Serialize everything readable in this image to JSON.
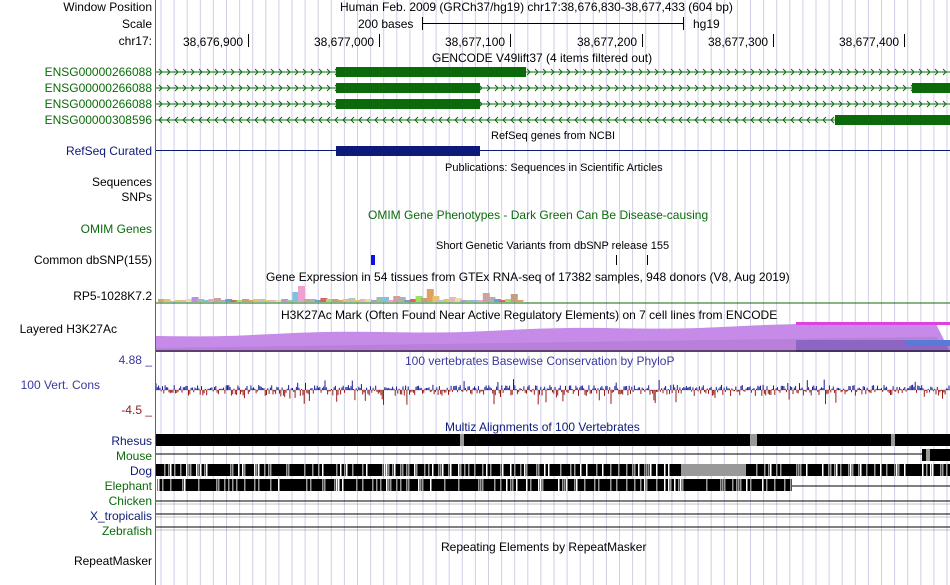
{
  "header": {
    "window_position_label": "Window Position",
    "scale_label": "Scale",
    "chrom_label": "chr17:",
    "position_title": "Human Feb. 2009 (GRCh37/hg19)   chr17:38,676,830-38,677,433 (604 bp)",
    "scale_text": "200 bases",
    "assembly": "hg19"
  },
  "ruler": {
    "positions": [
      "38,676,900",
      "38,677,000",
      "38,677,100",
      "38,677,200",
      "38,677,300",
      "38,677,400"
    ]
  },
  "tracks": {
    "gencode": {
      "title": "GENCODE V49lift37 (4 items filtered out)",
      "items": [
        "ENSG00000266088",
        "ENSG00000266088",
        "ENSG00000266088",
        "ENSG00000308596"
      ]
    },
    "refseq": {
      "title": "RefSeq genes from NCBI",
      "label": "RefSeq Curated"
    },
    "publications": {
      "title": "Publications: Sequences in Scientific Articles",
      "label1": "Sequences",
      "label2": "SNPs"
    },
    "omim": {
      "title": "OMIM Gene Phenotypes - Dark Green Can Be Disease-causing",
      "label": "OMIM Genes"
    },
    "dbsnp": {
      "title": "Short Genetic Variants from dbSNP release 155",
      "label": "Common dbSNP(155)"
    },
    "gtex": {
      "title": "Gene Expression in 54 tissues from GTEx RNA-seq of 17382 samples, 948 donors (V8, Aug 2019)",
      "label": "RP5-1028K7.2"
    },
    "h3k27ac": {
      "title": "H3K27Ac Mark (Often Found Near Active Regulatory Elements) on 7 cell lines from ENCODE",
      "label": "Layered H3K27Ac"
    },
    "phylop": {
      "title": "100 vertebrates Basewise Conservation by PhyloP",
      "label": "100 Vert. Cons",
      "max": "4.88 _",
      "min": "-4.5 _"
    },
    "multiz": {
      "title": "Multiz Alignments of 100 Vertebrates",
      "species": [
        "Rhesus",
        "Mouse",
        "Dog",
        "Elephant",
        "Chicken",
        "X_tropicalis",
        "Zebrafish"
      ]
    },
    "repeatmasker": {
      "title": "Repeating Elements by RepeatMasker",
      "label": "RepeatMasker"
    }
  },
  "colors": {
    "gencode": "#0b6b0b",
    "refseq": "#0c1a7a",
    "h3k27ac": "#c77cf0",
    "phylop_pos": "#1a1a9a",
    "phylop_neg": "#9a1a1a",
    "grid": "#cfcfe8"
  }
}
